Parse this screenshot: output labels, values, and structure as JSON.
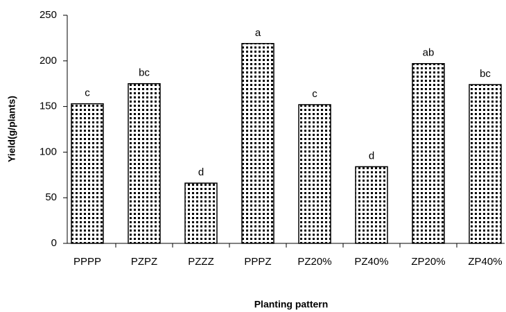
{
  "chart_data": {
    "type": "bar",
    "x_label": "Planting pattern",
    "y_label": "Yield(g/plants)",
    "categories": [
      "PPPP",
      "PZPZ",
      "PZZZ",
      "PPPZ",
      "PZ20%",
      "PZ40%",
      "ZP20%",
      "ZP40%"
    ],
    "values": [
      153,
      175,
      66,
      219,
      152,
      84,
      197,
      174
    ],
    "annotations": [
      "c",
      "bc",
      "d",
      "a",
      "c",
      "d",
      "ab",
      "bc"
    ],
    "color": "#000000",
    "ylim": [
      0,
      250
    ],
    "yticks": [
      0,
      50,
      100,
      150,
      200,
      250
    ],
    "grid": false
  }
}
